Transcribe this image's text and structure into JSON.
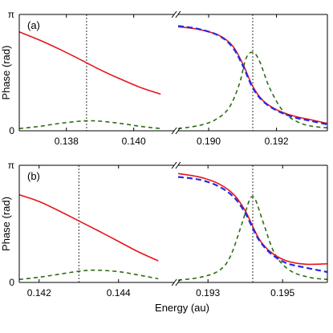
{
  "figure": {
    "xlabel": "Energy (au)",
    "ylabel": "Phase (rad)",
    "ytick_labels": [
      "π",
      "0"
    ],
    "colors": {
      "red": "#e8141b",
      "blue": "#1f2be8",
      "green": "#2c6e12",
      "axes": "#000000",
      "marker": "#000000"
    }
  },
  "chart_data": [
    {
      "type": "line",
      "panel_label": "(a)",
      "ylabel": "Phase (rad)",
      "ylim": [
        0,
        3.1416
      ],
      "yticks": [
        "π",
        "0"
      ],
      "broken_x_axis": true,
      "left": {
        "xlim": [
          0.1366,
          0.1412
        ],
        "xticks": [
          "0.138",
          "0.140"
        ],
        "xtick_values": [
          0.138,
          0.14
        ],
        "marker_x": 0.1386,
        "series": [
          {
            "color": "red",
            "style": "solid",
            "x": [
              0.1366,
              0.1372,
              0.1378,
              0.1384,
              0.139,
              0.1396,
              0.1402,
              0.1408
            ],
            "y": [
              2.67,
              2.45,
              2.2,
              1.93,
              1.65,
              1.4,
              1.17,
              0.99
            ]
          },
          {
            "color": "green",
            "style": "dashed",
            "x": [
              0.1366,
              0.1372,
              0.1378,
              0.1384,
              0.1387,
              0.139,
              0.1396,
              0.1402,
              0.1408
            ],
            "y": [
              0.06,
              0.12,
              0.2,
              0.26,
              0.27,
              0.26,
              0.2,
              0.12,
              0.06
            ]
          }
        ]
      },
      "right": {
        "xlim": [
          0.1891,
          0.1935
        ],
        "xticks": [
          "0.190",
          "0.192"
        ],
        "xtick_values": [
          0.19,
          0.192
        ],
        "marker_x": 0.1913,
        "series": [
          {
            "color": "red",
            "style": "solid",
            "x": [
              0.1891,
              0.1897,
              0.1903,
              0.1907,
              0.191,
              0.1913,
              0.1916,
              0.192,
              0.1925,
              0.193,
              0.1935
            ],
            "y": [
              2.81,
              2.74,
              2.58,
              2.3,
              1.82,
              1.2,
              0.82,
              0.57,
              0.4,
              0.3,
              0.2
            ]
          },
          {
            "color": "blue",
            "style": "dashed",
            "x": [
              0.1891,
              0.1897,
              0.1903,
              0.1907,
              0.191,
              0.1913,
              0.1916,
              0.192,
              0.1925,
              0.193,
              0.1935
            ],
            "y": [
              2.83,
              2.75,
              2.57,
              2.26,
              1.77,
              1.16,
              0.8,
              0.55,
              0.37,
              0.27,
              0.17
            ]
          },
          {
            "color": "green",
            "style": "dashed",
            "x": [
              0.1891,
              0.1897,
              0.1902,
              0.1906,
              0.1909,
              0.1911,
              0.1913,
              0.1915,
              0.1918,
              0.1922,
              0.1926,
              0.193,
              0.1935
            ],
            "y": [
              0.06,
              0.14,
              0.3,
              0.62,
              1.25,
              1.95,
              2.12,
              1.88,
              1.15,
              0.52,
              0.25,
              0.13,
              0.08
            ]
          }
        ]
      }
    },
    {
      "type": "line",
      "panel_label": "(b)",
      "ylabel": "Phase (rad)",
      "ylim": [
        0,
        3.1416
      ],
      "yticks": [
        "π",
        "0"
      ],
      "broken_x_axis": true,
      "left": {
        "xlim": [
          0.1415,
          0.1454
        ],
        "xticks": [
          "0.142",
          "0.144"
        ],
        "xtick_values": [
          0.142,
          0.144
        ],
        "marker_x": 0.143,
        "series": [
          {
            "color": "red",
            "style": "solid",
            "x": [
              0.1415,
              0.142,
              0.1425,
              0.143,
              0.1435,
              0.144,
              0.1445,
              0.145
            ],
            "y": [
              2.35,
              2.17,
              1.92,
              1.65,
              1.38,
              1.1,
              0.82,
              0.58
            ]
          },
          {
            "color": "green",
            "style": "dashed",
            "x": [
              0.1415,
              0.142,
              0.1425,
              0.143,
              0.1434,
              0.144,
              0.1445,
              0.145
            ],
            "y": [
              0.08,
              0.14,
              0.22,
              0.3,
              0.33,
              0.29,
              0.2,
              0.1
            ]
          }
        ]
      },
      "right": {
        "xlim": [
          0.1922,
          0.1962
        ],
        "xticks": [
          "0.193",
          "0.195"
        ],
        "xtick_values": [
          0.193,
          0.195
        ],
        "marker_x": 0.1942,
        "series": [
          {
            "color": "red",
            "style": "solid",
            "x": [
              0.1922,
              0.1928,
              0.1933,
              0.1937,
              0.194,
              0.1942,
              0.1944,
              0.1947,
              0.1951,
              0.1956,
              0.1962
            ],
            "y": [
              2.92,
              2.82,
              2.64,
              2.35,
              1.92,
              1.5,
              1.12,
              0.8,
              0.58,
              0.49,
              0.5
            ]
          },
          {
            "color": "blue",
            "style": "dashed",
            "x": [
              0.1922,
              0.1928,
              0.1933,
              0.1937,
              0.194,
              0.1942,
              0.1944,
              0.1947,
              0.1951,
              0.1956,
              0.1962
            ],
            "y": [
              2.83,
              2.75,
              2.57,
              2.28,
              1.86,
              1.45,
              1.09,
              0.76,
              0.52,
              0.4,
              0.28
            ]
          },
          {
            "color": "green",
            "style": "dashed",
            "x": [
              0.1922,
              0.1928,
              0.1933,
              0.1936,
              0.1939,
              0.1941,
              0.1942,
              0.1943,
              0.1945,
              0.1948,
              0.1952,
              0.1957,
              0.1962
            ],
            "y": [
              0.06,
              0.14,
              0.32,
              0.7,
              1.55,
              2.18,
              2.3,
              2.15,
              1.55,
              0.75,
              0.32,
              0.14,
              0.08
            ]
          }
        ]
      }
    }
  ]
}
